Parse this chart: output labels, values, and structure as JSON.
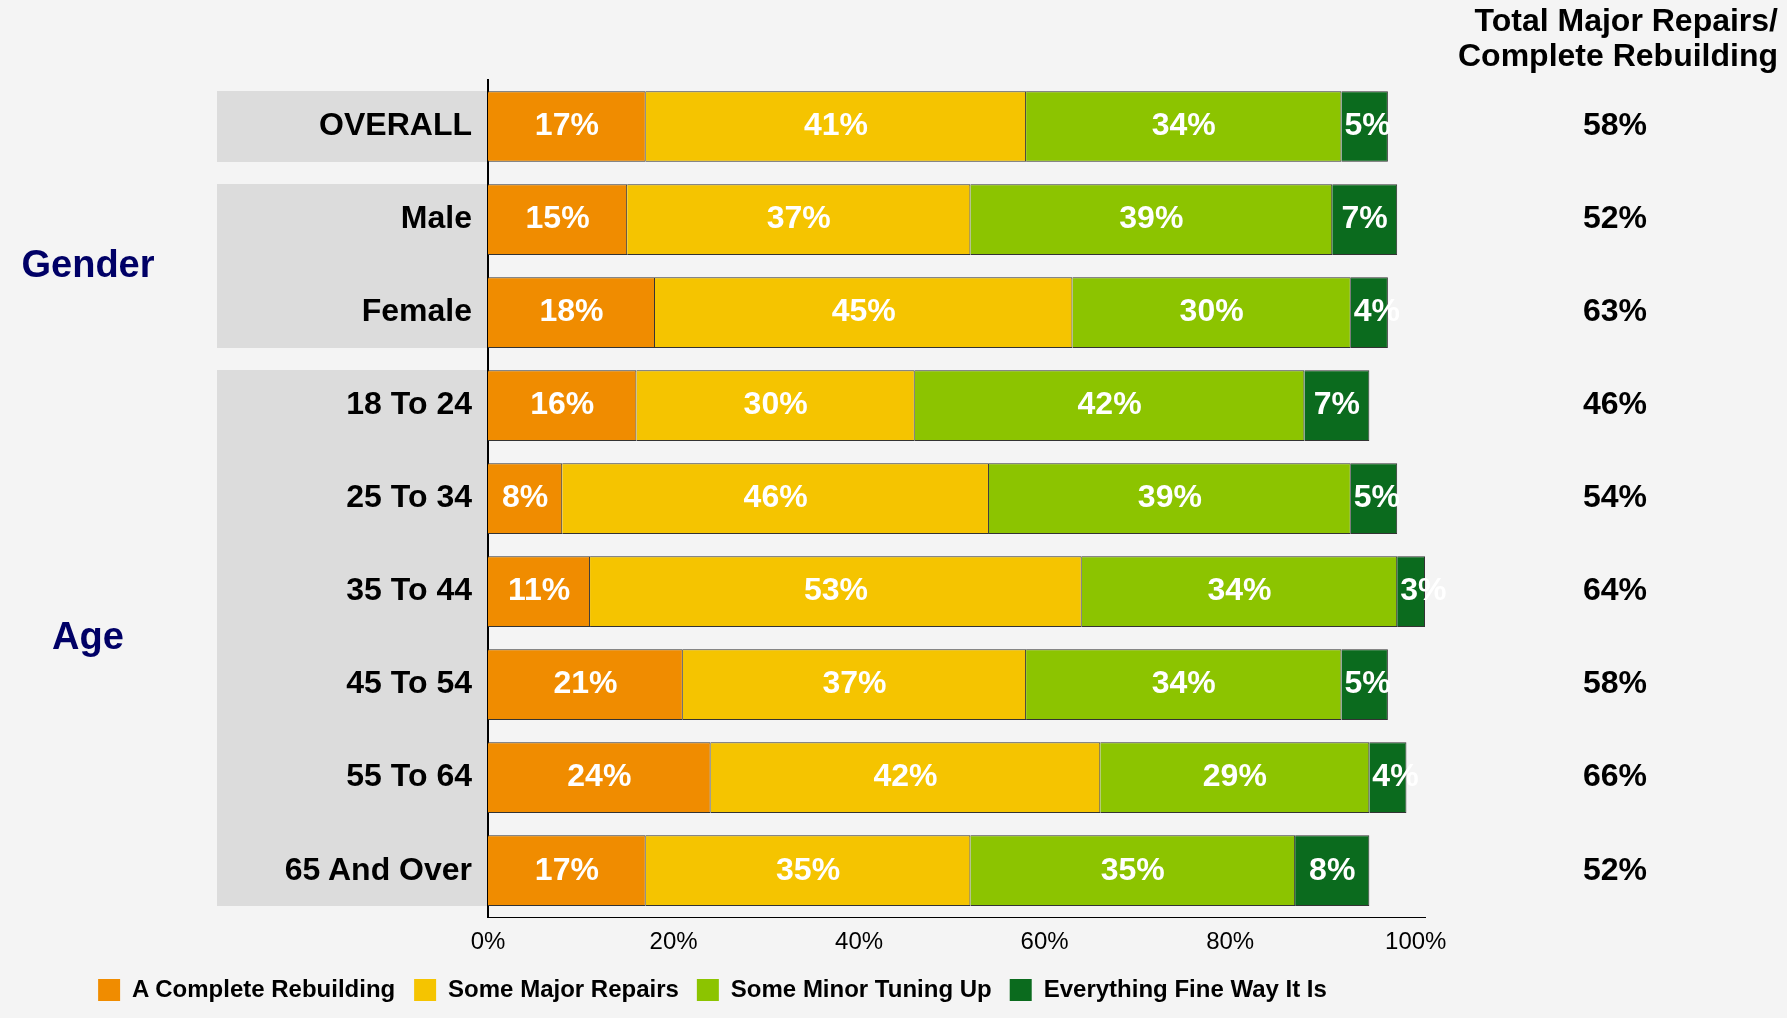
{
  "chart_data": {
    "type": "bar",
    "orientation": "horizontal",
    "stacked": true,
    "categories": [
      "OVERALL",
      "Male",
      "Female",
      "18 To 24",
      "25 To 34",
      "35 To 44",
      "45 To 54",
      "55 To 64",
      "65 And Over"
    ],
    "series": [
      {
        "name": "A Complete Rebuilding",
        "color": "#f08c00",
        "values": [
          17,
          15,
          18,
          16,
          8,
          11,
          21,
          24,
          17
        ],
        "value_labels": [
          "17%",
          "15%",
          "18%",
          "16%",
          "8%",
          "11%",
          "21%",
          "24%",
          "17%"
        ]
      },
      {
        "name": "Some Major Repairs",
        "color": "#f5c400",
        "values": [
          41,
          37,
          45,
          30,
          46,
          53,
          37,
          42,
          35
        ],
        "value_labels": [
          "41%",
          "37%",
          "45%",
          "30%",
          "46%",
          "53%",
          "37%",
          "42%",
          "35%"
        ]
      },
      {
        "name": "Some Minor Tuning Up",
        "color": "#8cc400",
        "values": [
          34,
          39,
          30,
          42,
          39,
          34,
          34,
          29,
          35
        ],
        "value_labels": [
          "34%",
          "39%",
          "30%",
          "42%",
          "39%",
          "34%",
          "34%",
          "29%",
          "35%"
        ]
      },
      {
        "name": "Everything Fine Way It Is",
        "color": "#0b6b1e",
        "values": [
          5,
          7,
          4,
          7,
          5,
          3,
          5,
          4,
          8
        ],
        "value_labels": [
          "5%",
          "7%",
          "4%",
          "7%",
          "5%",
          "3%",
          "5%",
          "4%",
          "8%"
        ]
      }
    ],
    "xlim": [
      0,
      101
    ],
    "xticks": [
      {
        "value": 0,
        "label": "0%"
      },
      {
        "value": 20,
        "label": "20%"
      },
      {
        "value": 40,
        "label": "40%"
      },
      {
        "value": 60,
        "label": "60%"
      },
      {
        "value": 80,
        "label": "80%"
      },
      {
        "value": 100,
        "label": "100%"
      }
    ],
    "legend": "bottom",
    "grid": false,
    "annotations": [
      "Total Major Repairs/ Complete Rebuilding",
      "Gender",
      "Age",
      "58%",
      "52%",
      "63%",
      "46%",
      "54%",
      "64%",
      "58%",
      "66%",
      "52%"
    ]
  }
}
